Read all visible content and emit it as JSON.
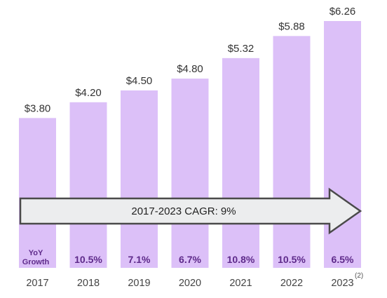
{
  "chart_data": {
    "type": "bar",
    "categories": [
      "2017",
      "2018",
      "2019",
      "2020",
      "2021",
      "2022",
      "2023"
    ],
    "values": [
      3.8,
      4.2,
      4.5,
      4.8,
      5.32,
      5.88,
      6.26
    ],
    "value_labels": [
      "$3.80",
      "$4.20",
      "$4.50",
      "$4.80",
      "$5.32",
      "$5.88",
      "$6.26"
    ],
    "growth_header": [
      "YoY",
      "Growth"
    ],
    "growth_labels": [
      "",
      "10.5%",
      "7.1%",
      "6.7%",
      "10.8%",
      "10.5%",
      "6.5%"
    ],
    "cagr_label": "2017-2023 CAGR: 9%",
    "footnote": "(2)",
    "bar_color": "#dcc0f8",
    "growth_color": "#5e2a8a",
    "ylim": [
      0,
      6.6
    ],
    "grid": false
  }
}
